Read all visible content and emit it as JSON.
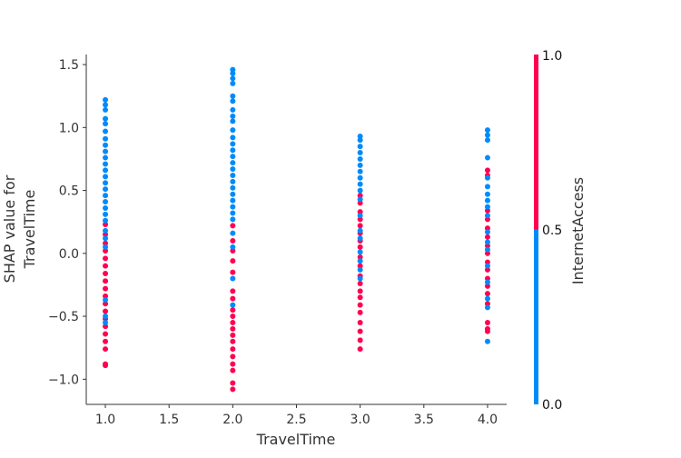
{
  "chart_data": {
    "type": "scatter",
    "title": "",
    "xlabel": "TravelTime",
    "ylabel_lines": [
      "SHAP value for",
      "TravelTime"
    ],
    "xlim": [
      0.85,
      4.15
    ],
    "ylim": [
      -1.2,
      1.58
    ],
    "x_ticks": [
      1.0,
      1.5,
      2.0,
      2.5,
      3.0,
      3.5,
      4.0
    ],
    "x_tick_labels": [
      "1.0",
      "1.5",
      "2.0",
      "2.5",
      "3.0",
      "3.5",
      "4.0"
    ],
    "y_ticks": [
      -1.0,
      -0.5,
      0.0,
      0.5,
      1.0,
      1.5
    ],
    "y_tick_labels": [
      "−1.0",
      "−0.5",
      "0.0",
      "0.5",
      "1.0",
      "1.5"
    ],
    "grid": false,
    "colorbar": {
      "label": "InternetAccess",
      "min": 0.0,
      "max": 1.0,
      "tick_labels": [
        "0.0",
        "0.5",
        "1.0"
      ],
      "low_color": "#008bfb",
      "high_color": "#ff0052"
    },
    "series": [
      {
        "color_value": 1.0,
        "color": "#ff0052",
        "points": [
          {
            "x": 1.0,
            "y": 0.23
          },
          {
            "x": 1.0,
            "y": 0.15
          },
          {
            "x": 1.0,
            "y": 0.08
          },
          {
            "x": 1.0,
            "y": 0.02
          },
          {
            "x": 1.0,
            "y": -0.04
          },
          {
            "x": 1.0,
            "y": -0.1
          },
          {
            "x": 1.0,
            "y": -0.16
          },
          {
            "x": 1.0,
            "y": -0.22
          },
          {
            "x": 1.0,
            "y": -0.28
          },
          {
            "x": 1.0,
            "y": -0.34
          },
          {
            "x": 1.0,
            "y": -0.4
          },
          {
            "x": 1.0,
            "y": -0.46
          },
          {
            "x": 1.0,
            "y": -0.52
          },
          {
            "x": 1.0,
            "y": -0.58
          },
          {
            "x": 1.0,
            "y": -0.64
          },
          {
            "x": 1.0,
            "y": -0.7
          },
          {
            "x": 1.0,
            "y": -0.76
          },
          {
            "x": 1.0,
            "y": -0.88
          },
          {
            "x": 1.0,
            "y": -0.89
          },
          {
            "x": 2.0,
            "y": 0.22
          },
          {
            "x": 2.0,
            "y": 0.1
          },
          {
            "x": 2.0,
            "y": 0.02
          },
          {
            "x": 2.0,
            "y": -0.06
          },
          {
            "x": 2.0,
            "y": -0.15
          },
          {
            "x": 2.0,
            "y": -0.3
          },
          {
            "x": 2.0,
            "y": -0.36
          },
          {
            "x": 2.0,
            "y": -0.45
          },
          {
            "x": 2.0,
            "y": -0.5
          },
          {
            "x": 2.0,
            "y": -0.55
          },
          {
            "x": 2.0,
            "y": -0.6
          },
          {
            "x": 2.0,
            "y": -0.65
          },
          {
            "x": 2.0,
            "y": -0.7
          },
          {
            "x": 2.0,
            "y": -0.76
          },
          {
            "x": 2.0,
            "y": -0.82
          },
          {
            "x": 2.0,
            "y": -0.88
          },
          {
            "x": 2.0,
            "y": -0.93
          },
          {
            "x": 2.0,
            "y": -1.03
          },
          {
            "x": 2.0,
            "y": -1.08
          },
          {
            "x": 3.0,
            "y": 0.46
          },
          {
            "x": 3.0,
            "y": 0.4
          },
          {
            "x": 3.0,
            "y": 0.33
          },
          {
            "x": 3.0,
            "y": 0.27
          },
          {
            "x": 3.0,
            "y": 0.22
          },
          {
            "x": 3.0,
            "y": 0.16
          },
          {
            "x": 3.0,
            "y": 0.1
          },
          {
            "x": 3.0,
            "y": 0.05
          },
          {
            "x": 3.0,
            "y": -0.03
          },
          {
            "x": 3.0,
            "y": -0.1
          },
          {
            "x": 3.0,
            "y": -0.18
          },
          {
            "x": 3.0,
            "y": -0.24
          },
          {
            "x": 3.0,
            "y": -0.3
          },
          {
            "x": 3.0,
            "y": -0.35
          },
          {
            "x": 3.0,
            "y": -0.41
          },
          {
            "x": 3.0,
            "y": -0.47
          },
          {
            "x": 3.0,
            "y": -0.55
          },
          {
            "x": 3.0,
            "y": -0.62
          },
          {
            "x": 3.0,
            "y": -0.69
          },
          {
            "x": 3.0,
            "y": -0.76
          },
          {
            "x": 4.0,
            "y": 0.66
          },
          {
            "x": 4.0,
            "y": 0.62
          },
          {
            "x": 4.0,
            "y": 0.34
          },
          {
            "x": 4.0,
            "y": 0.27
          },
          {
            "x": 4.0,
            "y": 0.2
          },
          {
            "x": 4.0,
            "y": 0.13
          },
          {
            "x": 4.0,
            "y": 0.06
          },
          {
            "x": 4.0,
            "y": 0.0
          },
          {
            "x": 4.0,
            "y": -0.07
          },
          {
            "x": 4.0,
            "y": -0.13
          },
          {
            "x": 4.0,
            "y": -0.2
          },
          {
            "x": 4.0,
            "y": -0.26
          },
          {
            "x": 4.0,
            "y": -0.32
          },
          {
            "x": 4.0,
            "y": -0.4
          },
          {
            "x": 4.0,
            "y": -0.55
          },
          {
            "x": 4.0,
            "y": -0.6
          },
          {
            "x": 4.0,
            "y": -0.62
          }
        ]
      },
      {
        "color_value": 0.0,
        "color": "#008bfb",
        "points": [
          {
            "x": 1.0,
            "y": 1.22
          },
          {
            "x": 1.0,
            "y": 1.18
          },
          {
            "x": 1.0,
            "y": 1.14
          },
          {
            "x": 1.0,
            "y": 1.07
          },
          {
            "x": 1.0,
            "y": 1.03
          },
          {
            "x": 1.0,
            "y": 0.97
          },
          {
            "x": 1.0,
            "y": 0.91
          },
          {
            "x": 1.0,
            "y": 0.86
          },
          {
            "x": 1.0,
            "y": 0.81
          },
          {
            "x": 1.0,
            "y": 0.76
          },
          {
            "x": 1.0,
            "y": 0.71
          },
          {
            "x": 1.0,
            "y": 0.66
          },
          {
            "x": 1.0,
            "y": 0.61
          },
          {
            "x": 1.0,
            "y": 0.56
          },
          {
            "x": 1.0,
            "y": 0.51
          },
          {
            "x": 1.0,
            "y": 0.46
          },
          {
            "x": 1.0,
            "y": 0.41
          },
          {
            "x": 1.0,
            "y": 0.36
          },
          {
            "x": 1.0,
            "y": 0.31
          },
          {
            "x": 1.0,
            "y": 0.26
          },
          {
            "x": 1.0,
            "y": 0.18
          },
          {
            "x": 1.0,
            "y": 0.12
          },
          {
            "x": 1.0,
            "y": 0.05
          },
          {
            "x": 1.0,
            "y": -0.37
          },
          {
            "x": 1.0,
            "y": -0.5
          },
          {
            "x": 1.0,
            "y": -0.55
          },
          {
            "x": 2.0,
            "y": 1.46
          },
          {
            "x": 2.0,
            "y": 1.43
          },
          {
            "x": 2.0,
            "y": 1.39
          },
          {
            "x": 2.0,
            "y": 1.35
          },
          {
            "x": 2.0,
            "y": 1.25
          },
          {
            "x": 2.0,
            "y": 1.21
          },
          {
            "x": 2.0,
            "y": 1.14
          },
          {
            "x": 2.0,
            "y": 1.09
          },
          {
            "x": 2.0,
            "y": 1.05
          },
          {
            "x": 2.0,
            "y": 0.98
          },
          {
            "x": 2.0,
            "y": 0.92
          },
          {
            "x": 2.0,
            "y": 0.87
          },
          {
            "x": 2.0,
            "y": 0.82
          },
          {
            "x": 2.0,
            "y": 0.77
          },
          {
            "x": 2.0,
            "y": 0.72
          },
          {
            "x": 2.0,
            "y": 0.67
          },
          {
            "x": 2.0,
            "y": 0.62
          },
          {
            "x": 2.0,
            "y": 0.57
          },
          {
            "x": 2.0,
            "y": 0.52
          },
          {
            "x": 2.0,
            "y": 0.47
          },
          {
            "x": 2.0,
            "y": 0.42
          },
          {
            "x": 2.0,
            "y": 0.37
          },
          {
            "x": 2.0,
            "y": 0.32
          },
          {
            "x": 2.0,
            "y": 0.27
          },
          {
            "x": 2.0,
            "y": 0.16
          },
          {
            "x": 2.0,
            "y": 0.05
          },
          {
            "x": 2.0,
            "y": -0.2
          },
          {
            "x": 2.0,
            "y": -0.41
          },
          {
            "x": 3.0,
            "y": 0.93
          },
          {
            "x": 3.0,
            "y": 0.9
          },
          {
            "x": 3.0,
            "y": 0.85
          },
          {
            "x": 3.0,
            "y": 0.8
          },
          {
            "x": 3.0,
            "y": 0.75
          },
          {
            "x": 3.0,
            "y": 0.7
          },
          {
            "x": 3.0,
            "y": 0.65
          },
          {
            "x": 3.0,
            "y": 0.6
          },
          {
            "x": 3.0,
            "y": 0.55
          },
          {
            "x": 3.0,
            "y": 0.5
          },
          {
            "x": 3.0,
            "y": 0.43
          },
          {
            "x": 3.0,
            "y": 0.3
          },
          {
            "x": 3.0,
            "y": 0.18
          },
          {
            "x": 3.0,
            "y": 0.12
          },
          {
            "x": 3.0,
            "y": 0.01
          },
          {
            "x": 3.0,
            "y": -0.06
          },
          {
            "x": 3.0,
            "y": -0.13
          },
          {
            "x": 3.0,
            "y": -0.2
          },
          {
            "x": 4.0,
            "y": 0.98
          },
          {
            "x": 4.0,
            "y": 0.94
          },
          {
            "x": 4.0,
            "y": 0.9
          },
          {
            "x": 4.0,
            "y": 0.76
          },
          {
            "x": 4.0,
            "y": 0.6
          },
          {
            "x": 4.0,
            "y": 0.53
          },
          {
            "x": 4.0,
            "y": 0.47
          },
          {
            "x": 4.0,
            "y": 0.42
          },
          {
            "x": 4.0,
            "y": 0.37
          },
          {
            "x": 4.0,
            "y": 0.3
          },
          {
            "x": 4.0,
            "y": 0.17
          },
          {
            "x": 4.0,
            "y": 0.09
          },
          {
            "x": 4.0,
            "y": 0.03
          },
          {
            "x": 4.0,
            "y": -0.1
          },
          {
            "x": 4.0,
            "y": -0.23
          },
          {
            "x": 4.0,
            "y": -0.36
          },
          {
            "x": 4.0,
            "y": -0.43
          },
          {
            "x": 4.0,
            "y": -0.7
          }
        ]
      }
    ]
  }
}
